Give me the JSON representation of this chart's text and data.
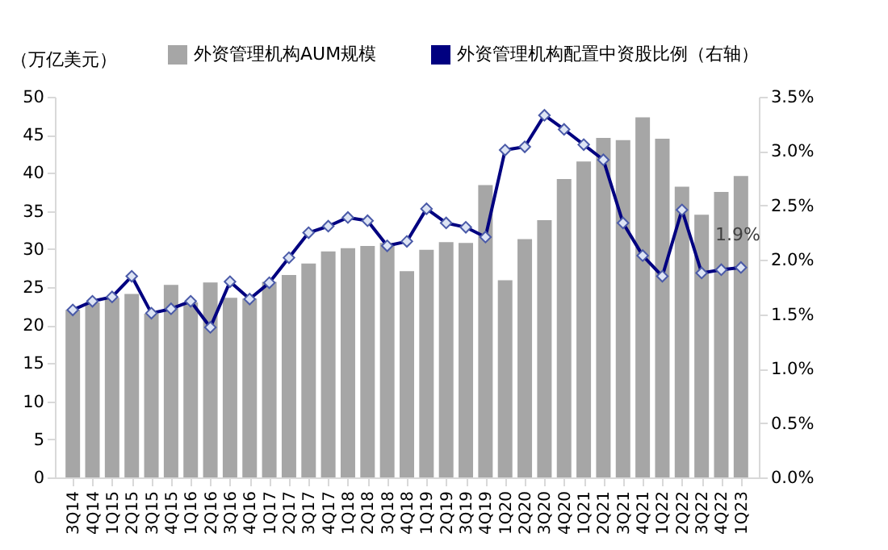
{
  "chart_data": {
    "type": "bar",
    "ylabel": "（万亿美元）",
    "categories": [
      "3Q14",
      "4Q14",
      "1Q15",
      "2Q15",
      "3Q15",
      "4Q15",
      "1Q16",
      "2Q16",
      "3Q16",
      "4Q16",
      "1Q17",
      "2Q17",
      "3Q17",
      "4Q17",
      "1Q18",
      "2Q18",
      "3Q18",
      "4Q18",
      "1Q19",
      "2Q19",
      "3Q19",
      "4Q19",
      "1Q20",
      "2Q20",
      "3Q20",
      "4Q20",
      "1Q21",
      "2Q21",
      "3Q21",
      "4Q21",
      "1Q22",
      "2Q22",
      "3Q22",
      "4Q22",
      "1Q23"
    ],
    "series": [
      {
        "name": "外资管理机构AUM规模",
        "color": "#a6a6a6",
        "values": [
          22,
          23,
          23.6,
          24.1,
          21.5,
          25.3,
          23,
          25.6,
          23.6,
          23.5,
          25.7,
          26.6,
          28.1,
          29.7,
          30.1,
          30.4,
          30.8,
          27.1,
          29.9,
          30.9,
          30.8,
          38.4,
          25.9,
          31.3,
          33.8,
          39.2,
          41.5,
          44.6,
          44.3,
          47.3,
          44.5,
          38.2,
          34.5,
          37.5,
          39.6
        ]
      },
      {
        "name": "外资管理机构配置中资股比例（右轴）",
        "type": "line",
        "axis": "y2",
        "color": "#000080",
        "marker": "diamond",
        "line_style": "solid",
        "values": [
          1.54,
          1.62,
          1.66,
          1.85,
          1.51,
          1.55,
          1.62,
          1.38,
          1.8,
          1.64,
          1.79,
          2.02,
          2.25,
          2.31,
          2.39,
          2.36,
          2.13,
          2.17,
          2.47,
          2.34,
          2.3,
          2.21,
          3.01,
          3.04,
          3.33,
          3.2,
          3.06,
          2.92,
          2.34,
          2.04,
          1.85,
          2.46,
          1.88,
          1.91,
          1.93
        ],
        "value_labels": [
          null,
          null,
          null,
          null,
          null,
          null,
          null,
          null,
          null,
          null,
          null,
          null,
          null,
          null,
          null,
          null,
          null,
          null,
          null,
          null,
          null,
          null,
          null,
          null,
          null,
          null,
          null,
          null,
          null,
          null,
          null,
          null,
          null,
          null,
          "1.9%"
        ]
      }
    ],
    "ylim": [
      0,
      50
    ],
    "yticks": [
      0,
      5,
      10,
      15,
      20,
      25,
      30,
      35,
      40,
      45,
      50
    ],
    "y2lim": [
      0,
      3.5
    ],
    "y2ticks": [
      {
        "value": 0,
        "label": "0.0%"
      },
      {
        "value": 0.5,
        "label": "0.5%"
      },
      {
        "value": 1,
        "label": "1.0%"
      },
      {
        "value": 1.5,
        "label": "1.5%"
      },
      {
        "value": 2,
        "label": "2.0%"
      },
      {
        "value": 2.5,
        "label": "2.5%"
      },
      {
        "value": 3,
        "label": "3.0%"
      },
      {
        "value": 3.5,
        "label": "3.5%"
      }
    ],
    "grid": false,
    "legend": "top"
  }
}
